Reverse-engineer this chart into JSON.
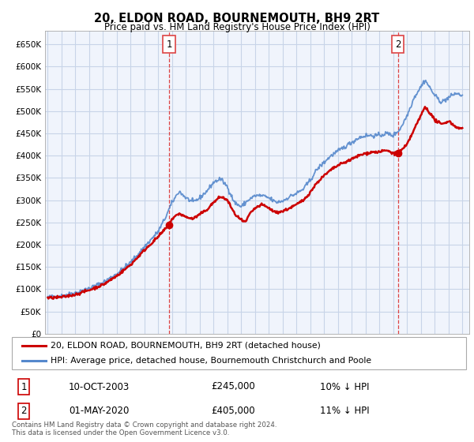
{
  "title": "20, ELDON ROAD, BOURNEMOUTH, BH9 2RT",
  "subtitle": "Price paid vs. HM Land Registry's House Price Index (HPI)",
  "ylim": [
    0,
    680000
  ],
  "xlim_start": 1994.8,
  "xlim_end": 2025.5,
  "bg_color": "#f0f4fc",
  "grid_color": "#c8d4e8",
  "sale1": {
    "year": 2003.78,
    "price": 245000,
    "label": "1"
  },
  "sale2": {
    "year": 2020.33,
    "price": 405000,
    "label": "2"
  },
  "legend1_label": "20, ELDON ROAD, BOURNEMOUTH, BH9 2RT (detached house)",
  "legend2_label": "HPI: Average price, detached house, Bournemouth Christchurch and Poole",
  "table_row1": [
    "1",
    "10-OCT-2003",
    "£245,000",
    "10% ↓ HPI"
  ],
  "table_row2": [
    "2",
    "01-MAY-2020",
    "£405,000",
    "11% ↓ HPI"
  ],
  "footer": "Contains HM Land Registry data © Crown copyright and database right 2024.\nThis data is licensed under the Open Government Licence v3.0.",
  "sale_color": "#cc0000",
  "hpi_color": "#5588cc",
  "dashed_color": "#dd4444",
  "hpi_key_points": [
    [
      1995.0,
      82000
    ],
    [
      1996.0,
      85000
    ],
    [
      1997.0,
      92000
    ],
    [
      1998.0,
      102000
    ],
    [
      1999.0,
      115000
    ],
    [
      2000.0,
      135000
    ],
    [
      2001.0,
      160000
    ],
    [
      2002.0,
      195000
    ],
    [
      2003.0,
      230000
    ],
    [
      2003.5,
      260000
    ],
    [
      2004.0,
      295000
    ],
    [
      2004.5,
      320000
    ],
    [
      2005.0,
      305000
    ],
    [
      2005.5,
      295000
    ],
    [
      2006.0,
      305000
    ],
    [
      2006.5,
      320000
    ],
    [
      2007.0,
      340000
    ],
    [
      2007.5,
      348000
    ],
    [
      2008.0,
      330000
    ],
    [
      2008.5,
      295000
    ],
    [
      2009.0,
      285000
    ],
    [
      2009.5,
      300000
    ],
    [
      2010.0,
      310000
    ],
    [
      2010.5,
      310000
    ],
    [
      2011.0,
      305000
    ],
    [
      2011.5,
      295000
    ],
    [
      2012.0,
      298000
    ],
    [
      2012.5,
      308000
    ],
    [
      2013.0,
      315000
    ],
    [
      2013.5,
      325000
    ],
    [
      2014.0,
      345000
    ],
    [
      2014.5,
      370000
    ],
    [
      2015.0,
      385000
    ],
    [
      2015.5,
      400000
    ],
    [
      2016.0,
      410000
    ],
    [
      2016.5,
      420000
    ],
    [
      2017.0,
      430000
    ],
    [
      2017.5,
      440000
    ],
    [
      2018.0,
      445000
    ],
    [
      2018.5,
      445000
    ],
    [
      2019.0,
      445000
    ],
    [
      2019.5,
      450000
    ],
    [
      2020.0,
      445000
    ],
    [
      2020.5,
      460000
    ],
    [
      2021.0,
      490000
    ],
    [
      2021.5,
      530000
    ],
    [
      2022.0,
      555000
    ],
    [
      2022.3,
      570000
    ],
    [
      2022.6,
      555000
    ],
    [
      2023.0,
      535000
    ],
    [
      2023.5,
      520000
    ],
    [
      2024.0,
      530000
    ],
    [
      2024.5,
      540000
    ],
    [
      2025.0,
      535000
    ]
  ],
  "sale_key_points": [
    [
      1995.0,
      80000
    ],
    [
      1996.0,
      82000
    ],
    [
      1997.0,
      88000
    ],
    [
      1998.0,
      98000
    ],
    [
      1999.0,
      110000
    ],
    [
      2000.0,
      130000
    ],
    [
      2001.0,
      155000
    ],
    [
      2002.0,
      188000
    ],
    [
      2003.0,
      218000
    ],
    [
      2003.78,
      245000
    ],
    [
      2004.0,
      258000
    ],
    [
      2004.5,
      270000
    ],
    [
      2005.0,
      262000
    ],
    [
      2005.5,
      258000
    ],
    [
      2006.0,
      268000
    ],
    [
      2006.5,
      278000
    ],
    [
      2007.0,
      295000
    ],
    [
      2007.5,
      308000
    ],
    [
      2008.0,
      300000
    ],
    [
      2008.5,
      270000
    ],
    [
      2009.0,
      255000
    ],
    [
      2009.3,
      250000
    ],
    [
      2009.6,
      268000
    ],
    [
      2010.0,
      282000
    ],
    [
      2010.5,
      290000
    ],
    [
      2011.0,
      282000
    ],
    [
      2011.5,
      272000
    ],
    [
      2012.0,
      275000
    ],
    [
      2012.5,
      282000
    ],
    [
      2013.0,
      290000
    ],
    [
      2013.5,
      300000
    ],
    [
      2014.0,
      318000
    ],
    [
      2014.5,
      340000
    ],
    [
      2015.0,
      355000
    ],
    [
      2015.5,
      368000
    ],
    [
      2016.0,
      378000
    ],
    [
      2016.5,
      385000
    ],
    [
      2017.0,
      392000
    ],
    [
      2017.5,
      400000
    ],
    [
      2018.0,
      405000
    ],
    [
      2018.5,
      408000
    ],
    [
      2019.0,
      408000
    ],
    [
      2019.5,
      412000
    ],
    [
      2020.0,
      405000
    ],
    [
      2020.33,
      405000
    ],
    [
      2020.8,
      418000
    ],
    [
      2021.0,
      425000
    ],
    [
      2021.5,
      458000
    ],
    [
      2022.0,
      490000
    ],
    [
      2022.3,
      510000
    ],
    [
      2022.6,
      498000
    ],
    [
      2023.0,
      480000
    ],
    [
      2023.5,
      470000
    ],
    [
      2024.0,
      478000
    ],
    [
      2024.5,
      465000
    ],
    [
      2025.0,
      460000
    ]
  ]
}
